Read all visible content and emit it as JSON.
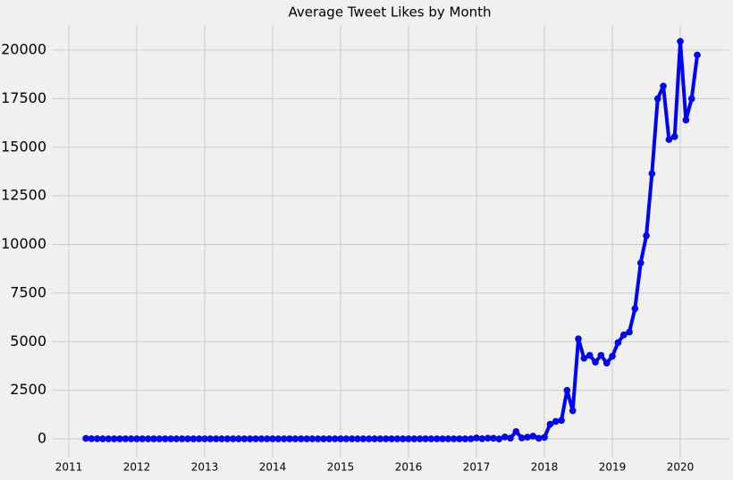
{
  "chart_data": {
    "type": "line",
    "title": "Average Tweet Likes by Month",
    "x": [
      2011.25,
      2011.333,
      2011.417,
      2011.5,
      2011.583,
      2011.667,
      2011.75,
      2011.833,
      2011.917,
      2012,
      2012.083,
      2012.167,
      2012.25,
      2012.333,
      2012.417,
      2012.5,
      2012.583,
      2012.667,
      2012.75,
      2012.833,
      2012.917,
      2013,
      2013.083,
      2013.167,
      2013.25,
      2013.333,
      2013.417,
      2013.5,
      2013.583,
      2013.667,
      2013.75,
      2013.833,
      2013.917,
      2014,
      2014.083,
      2014.167,
      2014.25,
      2014.333,
      2014.417,
      2014.5,
      2014.583,
      2014.667,
      2014.75,
      2014.833,
      2014.917,
      2015,
      2015.083,
      2015.167,
      2015.25,
      2015.333,
      2015.417,
      2015.5,
      2015.583,
      2015.667,
      2015.75,
      2015.833,
      2015.917,
      2016,
      2016.083,
      2016.167,
      2016.25,
      2016.333,
      2016.417,
      2016.5,
      2016.583,
      2016.667,
      2016.75,
      2016.833,
      2016.917,
      2017,
      2017.083,
      2017.167,
      2017.25,
      2017.333,
      2017.417,
      2017.5,
      2017.583,
      2017.667,
      2017.75,
      2017.833,
      2017.917,
      2018,
      2018.083,
      2018.167,
      2018.25,
      2018.333,
      2018.417,
      2018.5,
      2018.583,
      2018.667,
      2018.75,
      2018.833,
      2018.917,
      2019,
      2019.083,
      2019.167,
      2019.25,
      2019.333,
      2019.417,
      2019.5,
      2019.583,
      2019.667,
      2019.75,
      2019.833,
      2019.917,
      2020,
      2020.083,
      2020.167,
      2020.25
    ],
    "series": [
      {
        "color": "#0000ff",
        "values": [
          25,
          10,
          8,
          5,
          5,
          5,
          5,
          5,
          5,
          5,
          5,
          5,
          5,
          5,
          5,
          5,
          5,
          5,
          5,
          5,
          5,
          5,
          5,
          5,
          5,
          5,
          5,
          5,
          5,
          5,
          5,
          5,
          5,
          5,
          5,
          5,
          5,
          5,
          5,
          5,
          5,
          5,
          5,
          5,
          5,
          5,
          5,
          5,
          5,
          5,
          5,
          5,
          5,
          5,
          5,
          5,
          5,
          5,
          5,
          5,
          5,
          5,
          5,
          5,
          5,
          5,
          5,
          5,
          5,
          50,
          10,
          40,
          30,
          0,
          100,
          40,
          380,
          50,
          90,
          140,
          30,
          80,
          750,
          900,
          950,
          2500,
          1450,
          5150,
          4150,
          4300,
          3950,
          4300,
          3900,
          4250,
          4950,
          5350,
          5500,
          6700,
          9050,
          10450,
          13650,
          17500,
          18150,
          15400,
          15550,
          20450,
          16400,
          17500,
          19750
        ]
      }
    ],
    "xlim": [
      2010.75,
      2020.71
    ],
    "xticks": [
      2011,
      2012,
      2013,
      2014,
      2015,
      2016,
      2017,
      2018,
      2019,
      2020
    ],
    "ylim": [
      -965,
      21290
    ],
    "yticks": [
      0,
      2500,
      5000,
      7500,
      10000,
      12500,
      15000,
      17500,
      20000
    ],
    "grid": true
  }
}
